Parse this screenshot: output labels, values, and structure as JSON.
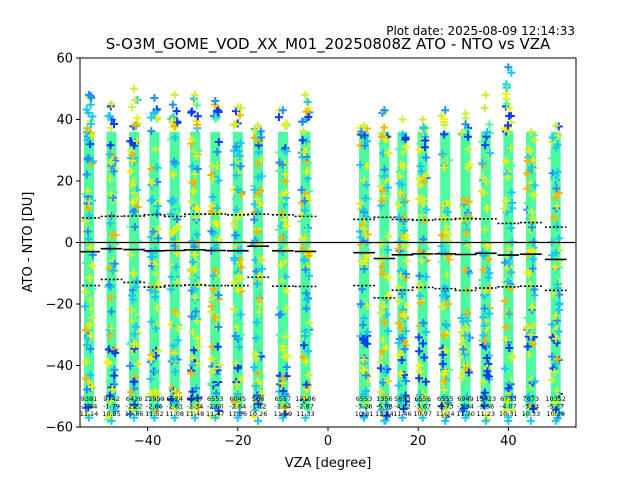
{
  "chart_data": {
    "type": "scatter",
    "title": "S-O3M_GOME_VOD_XX_M01_20250808Z ATO - NTO vs VZA",
    "plot_date": "Plot date: 2025-08-09 12:14:33",
    "xlabel": "VZA [degree]",
    "ylabel": "ATO - NTO [DU]",
    "xlim": [
      -55,
      55
    ],
    "ylim": [
      -60,
      60
    ],
    "xticks": [
      -40,
      -20,
      0,
      20,
      40
    ],
    "yticks": [
      -60,
      -40,
      -20,
      0,
      20,
      40,
      60
    ],
    "grid": false,
    "marker": "+",
    "colors": {
      "dense_core": "#4dfa9f",
      "mid_cyan": "#18c8f0",
      "light_blue": "#1e90ff",
      "blue": "#0a3cf0",
      "yellow_green": "#c8f03c",
      "yellow": "#f5f00a",
      "orange": "#f5b400",
      "zero_line": "#000000"
    },
    "bins": [
      {
        "vza": -53,
        "ymin": -57,
        "ymax": 48,
        "count": "9381",
        "mean": "-2.84",
        "std": "11.14",
        "line_mean": -3.0,
        "line_upper": 8.0,
        "line_lower": -14.0
      },
      {
        "vza": -48,
        "ymin": -58,
        "ymax": 45,
        "count": "9742",
        "mean": "-1.79",
        "std": "10.25",
        "line_mean": -2.0,
        "line_upper": 8.5,
        "line_lower": -12.0
      },
      {
        "vza": -43,
        "ymin": -57,
        "ymax": 50,
        "count": "6426",
        "mean": "-2.22",
        "std": "10.86",
        "line_mean": -2.3,
        "line_upper": 8.6,
        "line_lower": -13.0
      },
      {
        "vza": -38.5,
        "ymin": -57,
        "ymax": 47,
        "count": "12959",
        "mean": "-2.66",
        "std": "11.52",
        "line_mean": -2.7,
        "line_upper": 9.0,
        "line_lower": -14.5
      },
      {
        "vza": -34,
        "ymin": -57,
        "ymax": 48,
        "count": "6524",
        "mean": "-2.61",
        "std": "11.08",
        "line_mean": -2.6,
        "line_upper": 8.5,
        "line_lower": -14.0
      },
      {
        "vza": -29.5,
        "ymin": -57,
        "ymax": 48,
        "count": "6537",
        "mean": "-2.34",
        "std": "11.48",
        "line_mean": -2.4,
        "line_upper": 9.2,
        "line_lower": -13.8
      },
      {
        "vza": -25,
        "ymin": -57,
        "ymax": 46,
        "count": "6553",
        "mean": "-2.60",
        "std": "11.47",
        "line_mean": -2.6,
        "line_upper": 9.3,
        "line_lower": -14.0
      },
      {
        "vza": -20,
        "ymin": -57,
        "ymax": 44,
        "count": "6045",
        "mean": "-2.64",
        "std": "11.56",
        "line_mean": -2.7,
        "line_upper": 9.0,
        "line_lower": -14.0
      },
      {
        "vza": -15.5,
        "ymin": -58,
        "ymax": 38,
        "count": "508",
        "mean": "-1.12",
        "std": "10.26",
        "line_mean": -1.2,
        "line_upper": 9.2,
        "line_lower": -11.3
      },
      {
        "vza": -10,
        "ymin": -57,
        "ymax": 43,
        "count": "6557",
        "mean": "-2.64",
        "std": "11.59",
        "line_mean": -2.7,
        "line_upper": 9.0,
        "line_lower": -14.2
      },
      {
        "vza": -5,
        "ymin": -57,
        "ymax": 48,
        "count": "13106",
        "mean": "-2.87",
        "std": "11.33",
        "line_mean": -2.9,
        "line_upper": 8.5,
        "line_lower": -14.3
      },
      {
        "vza": 8,
        "ymin": -57,
        "ymax": 38,
        "count": "6553",
        "mean": "-3.26",
        "std": "10.81",
        "line_mean": -3.3,
        "line_upper": 7.5,
        "line_lower": -14.0
      },
      {
        "vza": 12.5,
        "ymin": -58,
        "ymax": 43,
        "count": "1356",
        "mean": "-5.08",
        "std": "13.34",
        "line_mean": -5.2,
        "line_upper": 8.2,
        "line_lower": -18.0
      },
      {
        "vza": 16.5,
        "ymin": -57,
        "ymax": 40,
        "count": "5693",
        "mean": "-4.02",
        "std": "11.46",
        "line_mean": -4.0,
        "line_upper": 7.5,
        "line_lower": -15.5
      },
      {
        "vza": 21,
        "ymin": -57,
        "ymax": 40,
        "count": "6556",
        "mean": "-3.67",
        "std": "10.97",
        "line_mean": -3.7,
        "line_upper": 7.3,
        "line_lower": -14.6
      },
      {
        "vza": 26,
        "ymin": -58,
        "ymax": 43,
        "count": "6555",
        "mean": "-3.73",
        "std": "11.24",
        "line_mean": -3.7,
        "line_upper": 7.5,
        "line_lower": -15.0
      },
      {
        "vza": 30.5,
        "ymin": -57,
        "ymax": 42,
        "count": "6949",
        "mean": "-3.94",
        "std": "11.70",
        "line_mean": -3.9,
        "line_upper": 7.8,
        "line_lower": -15.6
      },
      {
        "vza": 35,
        "ymin": -58,
        "ymax": 48,
        "count": "13423",
        "mean": "-3.56",
        "std": "11.23",
        "line_mean": -3.5,
        "line_upper": 7.7,
        "line_lower": -14.8
      },
      {
        "vza": 40,
        "ymin": -58,
        "ymax": 57,
        "count": "6733",
        "mean": "-4.07",
        "std": "10.31",
        "line_mean": -4.1,
        "line_upper": 6.2,
        "line_lower": -14.4
      },
      {
        "vza": 45,
        "ymin": -58,
        "ymax": 36,
        "count": "7673",
        "mean": "-3.84",
        "std": "10.33",
        "line_mean": -3.8,
        "line_upper": 6.5,
        "line_lower": -14.2
      },
      {
        "vza": 50.5,
        "ymin": -58,
        "ymax": 38,
        "count": "10352",
        "mean": "-5.27",
        "std": "10.39",
        "line_mean": -5.5,
        "line_upper": 5.0,
        "line_lower": -15.6
      }
    ]
  }
}
